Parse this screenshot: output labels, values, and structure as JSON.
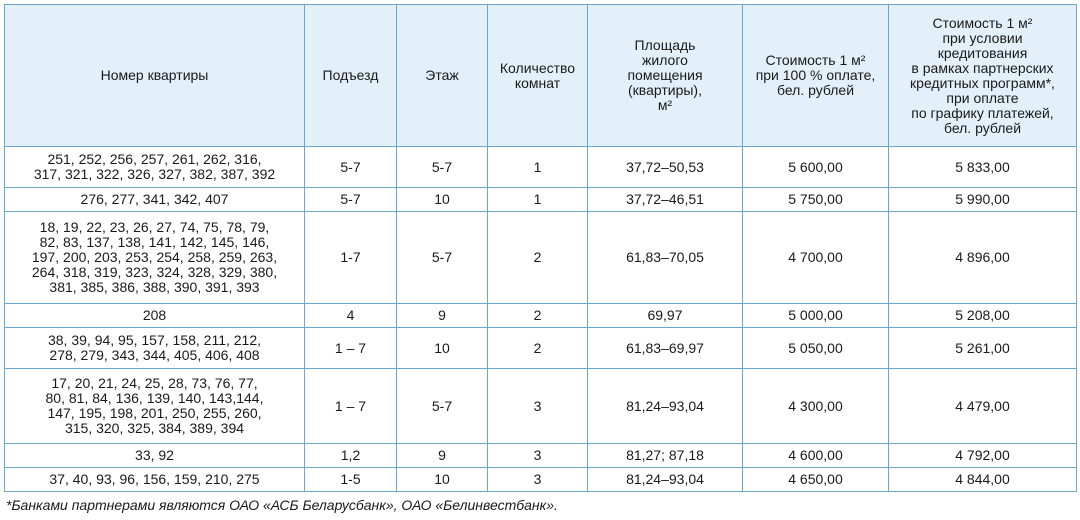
{
  "headers": [
    [
      "Номер квартиры"
    ],
    [
      "Подъезд"
    ],
    [
      "Этаж"
    ],
    [
      "Количество",
      "комнат"
    ],
    [
      "Площадь",
      "жилого",
      "помещения",
      "(квартиры),",
      "м²"
    ],
    [
      "Стоимость 1 м²",
      "при 100 % оплате,",
      "бел. рублей"
    ],
    [
      "Стоимость 1 м²",
      "при условии",
      "кредитования",
      "в рамках партнерских",
      "кредитных программ*,",
      "при оплате",
      "по графику платежей,",
      "бел. рублей"
    ]
  ],
  "rows": [
    {
      "apartments": [
        "251, 252, 256, 257, 261, 262, 316,",
        "317, 321, 322, 326, 327, 382, 387, 392"
      ],
      "entrance": "5-7",
      "floor": "5-7",
      "rooms": "1",
      "area": "37,72–50,53",
      "price_full": "5 600,00",
      "price_credit": "5 833,00"
    },
    {
      "apartments": [
        "276, 277, 341, 342, 407"
      ],
      "entrance": "5-7",
      "floor": "10",
      "rooms": "1",
      "area": "37,72–46,51",
      "price_full": "5 750,00",
      "price_credit": "5 990,00"
    },
    {
      "apartments": [
        "18, 19, 22, 23, 26, 27, 74, 75, 78, 79,",
        "82, 83, 137, 138, 141, 142, 145, 146,",
        "197, 200, 203, 253, 254, 258, 259, 263,",
        "264, 318, 319, 323, 324, 328, 329, 380,",
        "381, 385, 386, 388, 390, 391, 393"
      ],
      "entrance": "1-7",
      "floor": "5-7",
      "rooms": "2",
      "area": "61,83–70,05",
      "price_full": "4 700,00",
      "price_credit": "4 896,00"
    },
    {
      "apartments": [
        "208"
      ],
      "entrance": "4",
      "floor": "9",
      "rooms": "2",
      "area": "69,97",
      "price_full": "5 000,00",
      "price_credit": "5 208,00"
    },
    {
      "apartments": [
        "38, 39, 94, 95, 157, 158, 211, 212,",
        "278, 279, 343, 344, 405, 406, 408"
      ],
      "entrance": "1 – 7",
      "floor": "10",
      "rooms": "2",
      "area": "61,83–69,97",
      "price_full": "5 050,00",
      "price_credit": "5 261,00"
    },
    {
      "apartments": [
        "17, 20, 21, 24, 25, 28, 73, 76, 77,",
        "80, 81, 84, 136, 139, 140, 143,144,",
        "147, 195, 198, 201, 250, 255, 260,",
        "315, 320, 325, 384, 389, 394"
      ],
      "entrance": "1 – 7",
      "floor": "5-7",
      "rooms": "3",
      "area": "81,24–93,04",
      "price_full": "4 300,00",
      "price_credit": "4 479,00"
    },
    {
      "apartments": [
        "33, 92"
      ],
      "entrance": "1,2",
      "floor": "9",
      "rooms": "3",
      "area": "81,27; 87,18",
      "price_full": "4 600,00",
      "price_credit": "4 792,00"
    },
    {
      "apartments": [
        "37, 40, 93, 96, 156, 159, 210, 275"
      ],
      "entrance": "1-5",
      "floor": "10",
      "rooms": "3",
      "area": "81,24–93,04",
      "price_full": "4 650,00",
      "price_credit": "4 844,00"
    }
  ],
  "footnote": "*Банками партнерами являются ОАО «АСБ Беларусбанк», ОАО «Белинвестбанк».",
  "colors": {
    "header_bg": "#e3f0f9",
    "border": "#6aa7cf"
  }
}
